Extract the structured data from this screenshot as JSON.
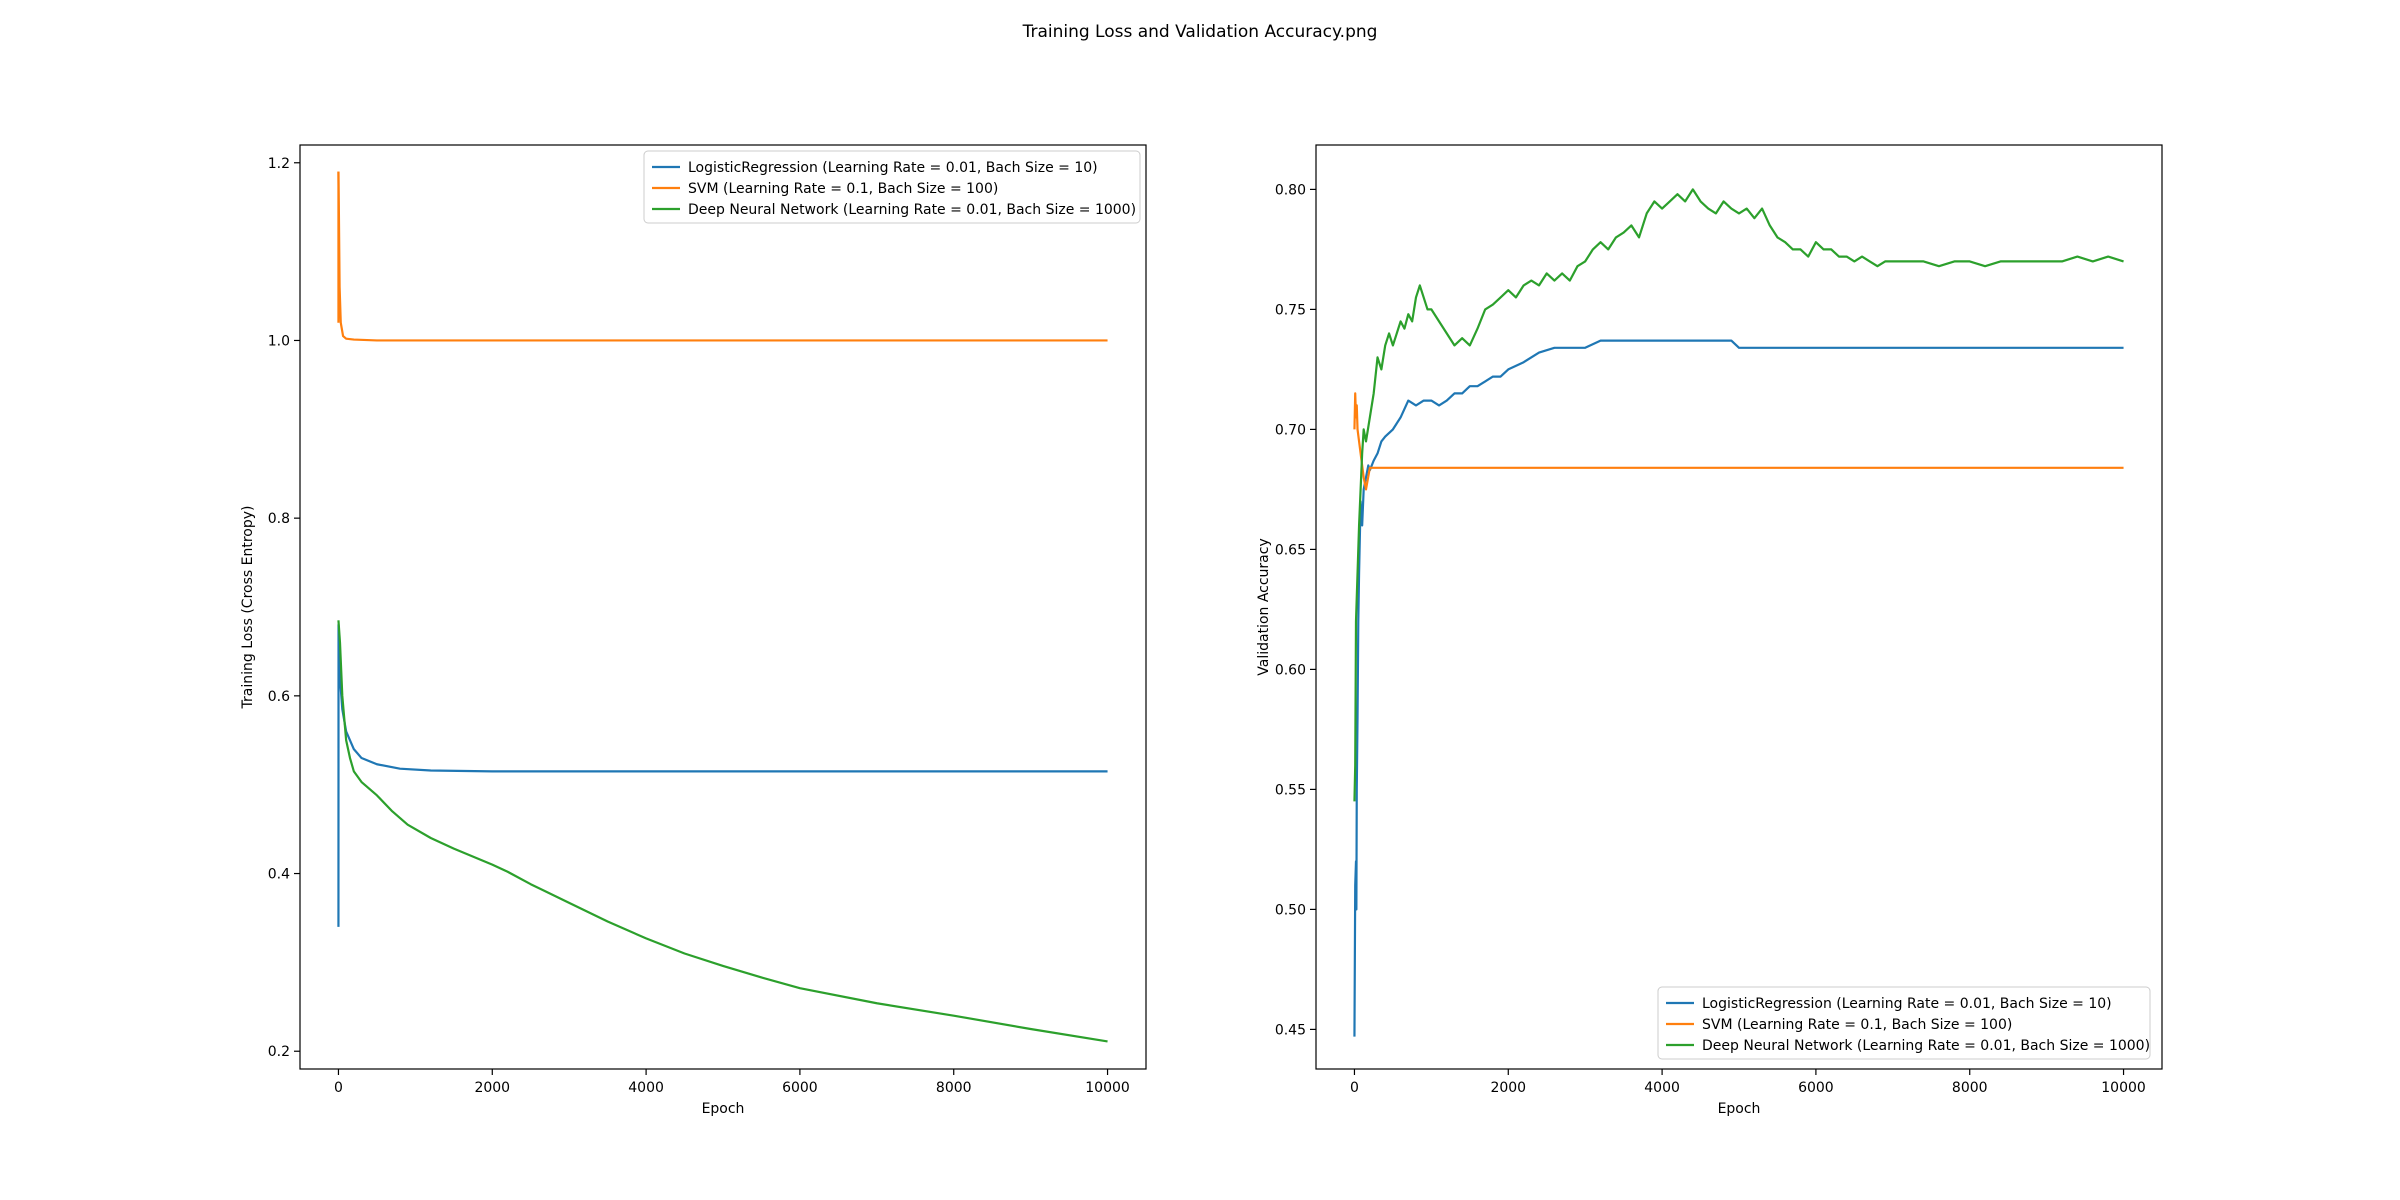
{
  "figure": {
    "title": "Training Loss and Validation Accuracy.png"
  },
  "colors": {
    "logistic": "#1f77b4",
    "svm": "#ff7f0e",
    "dnn": "#2ca02c",
    "axes": "#000000",
    "legend_border": "#cccccc"
  },
  "chart_data": [
    {
      "type": "line",
      "title": "",
      "xlabel": "Epoch",
      "ylabel": "Training Loss (Cross Entropy)",
      "xlim": [
        -500,
        10500
      ],
      "ylim": [
        0.18,
        1.22
      ],
      "xticks": [
        0,
        2000,
        4000,
        6000,
        8000,
        10000
      ],
      "xtick_labels": [
        "0",
        "2000",
        "4000",
        "6000",
        "8000",
        "10000"
      ],
      "yticks": [
        0.2,
        0.4,
        0.6,
        0.8,
        1.0,
        1.2
      ],
      "ytick_labels": [
        "0.2",
        "0.4",
        "0.6",
        "0.8",
        "1.0",
        "1.2"
      ],
      "grid": false,
      "legend_position": "upper right",
      "series": [
        {
          "name": "LogisticRegression (Learning Rate = 0.01, Bach Size = 10)",
          "color": "#1f77b4",
          "x": [
            0,
            1,
            5,
            20,
            50,
            100,
            200,
            300,
            500,
            800,
            1200,
            2000,
            3000,
            5000,
            8000,
            10000
          ],
          "y": [
            0.34,
            0.68,
            0.67,
            0.62,
            0.585,
            0.56,
            0.54,
            0.53,
            0.523,
            0.518,
            0.516,
            0.515,
            0.515,
            0.515,
            0.515,
            0.515
          ]
        },
        {
          "name": "SVM (Learning Rate = 0.1, Bach Size = 100)",
          "color": "#ff7f0e",
          "x": [
            0,
            5,
            15,
            30,
            60,
            100,
            200,
            500,
            1000,
            3000,
            6000,
            10000
          ],
          "y": [
            1.19,
            1.15,
            1.06,
            1.02,
            1.005,
            1.002,
            1.001,
            1.0,
            1.0,
            1.0,
            1.0,
            1.0
          ],
          "extra_segments": [
            {
              "x": [
                0,
                0
              ],
              "y": [
                1.19,
                1.02
              ]
            }
          ]
        },
        {
          "name": "Deep Neural Network (Learning Rate = 0.01, Bach Size = 1000)",
          "color": "#2ca02c",
          "x": [
            0,
            20,
            50,
            100,
            150,
            200,
            300,
            500,
            700,
            900,
            1200,
            1500,
            2000,
            2200,
            2500,
            3000,
            3500,
            4000,
            4500,
            5000,
            5500,
            6000,
            7000,
            8000,
            9000,
            10000
          ],
          "y": [
            0.685,
            0.66,
            0.6,
            0.55,
            0.53,
            0.515,
            0.503,
            0.488,
            0.47,
            0.455,
            0.44,
            0.428,
            0.41,
            0.402,
            0.388,
            0.367,
            0.346,
            0.327,
            0.31,
            0.296,
            0.283,
            0.271,
            0.254,
            0.24,
            0.225,
            0.211
          ]
        }
      ]
    },
    {
      "type": "line",
      "title": "",
      "xlabel": "Epoch",
      "ylabel": "Validation Accuracy",
      "xlim": [
        -500,
        10500
      ],
      "ylim": [
        0.4335,
        0.8185
      ],
      "xticks": [
        0,
        2000,
        4000,
        6000,
        8000,
        10000
      ],
      "xtick_labels": [
        "0",
        "2000",
        "4000",
        "6000",
        "8000",
        "10000"
      ],
      "yticks": [
        0.45,
        0.5,
        0.55,
        0.6,
        0.65,
        0.7,
        0.75,
        0.8
      ],
      "ytick_labels": [
        "0.45",
        "0.50",
        "0.55",
        "0.60",
        "0.65",
        "0.70",
        "0.75",
        "0.80"
      ],
      "grid": false,
      "legend_position": "lower right",
      "series": [
        {
          "name": "LogisticRegression (Learning Rate = 0.01, Bach Size = 10)",
          "color": "#1f77b4",
          "x": [
            0,
            10,
            20,
            25,
            30,
            40,
            50,
            60,
            70,
            80,
            100,
            120,
            150,
            180,
            200,
            250,
            300,
            350,
            400,
            500,
            600,
            700,
            800,
            900,
            1000,
            1100,
            1200,
            1300,
            1400,
            1500,
            1600,
            1700,
            1800,
            1900,
            2000,
            2200,
            2400,
            2600,
            3000,
            3200,
            3400,
            4000,
            4500,
            4900,
            5000,
            5500,
            6000,
            7000,
            8000,
            9000,
            10000
          ],
          "y": [
            0.447,
            0.51,
            0.52,
            0.5,
            0.55,
            0.58,
            0.62,
            0.64,
            0.655,
            0.67,
            0.66,
            0.675,
            0.68,
            0.685,
            0.683,
            0.687,
            0.69,
            0.695,
            0.697,
            0.7,
            0.705,
            0.712,
            0.71,
            0.712,
            0.712,
            0.71,
            0.712,
            0.715,
            0.715,
            0.718,
            0.718,
            0.72,
            0.722,
            0.722,
            0.725,
            0.728,
            0.732,
            0.734,
            0.734,
            0.737,
            0.737,
            0.737,
            0.737,
            0.737,
            0.734,
            0.734,
            0.734,
            0.734,
            0.734,
            0.734,
            0.734
          ]
        },
        {
          "name": "SVM (Learning Rate = 0.1, Bach Size = 100)",
          "color": "#ff7f0e",
          "x": [
            0,
            10,
            20,
            30,
            40,
            60,
            80,
            100,
            120,
            150,
            200,
            300,
            500,
            1000,
            3000,
            6000,
            10000
          ],
          "y": [
            0.7,
            0.715,
            0.705,
            0.71,
            0.7,
            0.695,
            0.69,
            0.685,
            0.68,
            0.675,
            0.684,
            0.684,
            0.684,
            0.684,
            0.684,
            0.684,
            0.684
          ]
        },
        {
          "name": "Deep Neural Network (Learning Rate = 0.01, Bach Size = 1000)",
          "color": "#2ca02c",
          "x": [
            0,
            10,
            20,
            40,
            60,
            80,
            100,
            120,
            150,
            200,
            250,
            300,
            350,
            400,
            450,
            500,
            550,
            600,
            650,
            700,
            750,
            800,
            850,
            900,
            950,
            1000,
            1100,
            1200,
            1300,
            1400,
            1500,
            1600,
            1700,
            1800,
            1900,
            2000,
            2100,
            2200,
            2300,
            2400,
            2500,
            2600,
            2700,
            2800,
            2900,
            3000,
            3100,
            3200,
            3300,
            3400,
            3500,
            3600,
            3700,
            3800,
            3900,
            4000,
            4100,
            4200,
            4300,
            4400,
            4500,
            4600,
            4700,
            4800,
            4900,
            5000,
            5100,
            5200,
            5300,
            5400,
            5500,
            5600,
            5700,
            5800,
            5900,
            6000,
            6100,
            6200,
            6300,
            6400,
            6500,
            6600,
            6700,
            6800,
            6900,
            7000,
            7200,
            7400,
            7600,
            7800,
            8000,
            8200,
            8400,
            8600,
            8800,
            9000,
            9200,
            9400,
            9600,
            9800,
            10000
          ],
          "y": [
            0.545,
            0.56,
            0.62,
            0.64,
            0.66,
            0.675,
            0.69,
            0.7,
            0.695,
            0.705,
            0.715,
            0.73,
            0.725,
            0.735,
            0.74,
            0.735,
            0.74,
            0.745,
            0.742,
            0.748,
            0.745,
            0.755,
            0.76,
            0.755,
            0.75,
            0.75,
            0.745,
            0.74,
            0.735,
            0.738,
            0.735,
            0.742,
            0.75,
            0.752,
            0.755,
            0.758,
            0.755,
            0.76,
            0.762,
            0.76,
            0.765,
            0.762,
            0.765,
            0.762,
            0.768,
            0.77,
            0.775,
            0.778,
            0.775,
            0.78,
            0.782,
            0.785,
            0.78,
            0.79,
            0.795,
            0.792,
            0.795,
            0.798,
            0.795,
            0.8,
            0.795,
            0.792,
            0.79,
            0.795,
            0.792,
            0.79,
            0.792,
            0.788,
            0.792,
            0.785,
            0.78,
            0.778,
            0.775,
            0.775,
            0.772,
            0.778,
            0.775,
            0.775,
            0.772,
            0.772,
            0.77,
            0.772,
            0.77,
            0.768,
            0.77,
            0.77,
            0.77,
            0.77,
            0.768,
            0.77,
            0.77,
            0.768,
            0.77,
            0.77,
            0.77,
            0.77,
            0.77,
            0.772,
            0.77,
            0.772,
            0.77
          ]
        }
      ]
    }
  ]
}
